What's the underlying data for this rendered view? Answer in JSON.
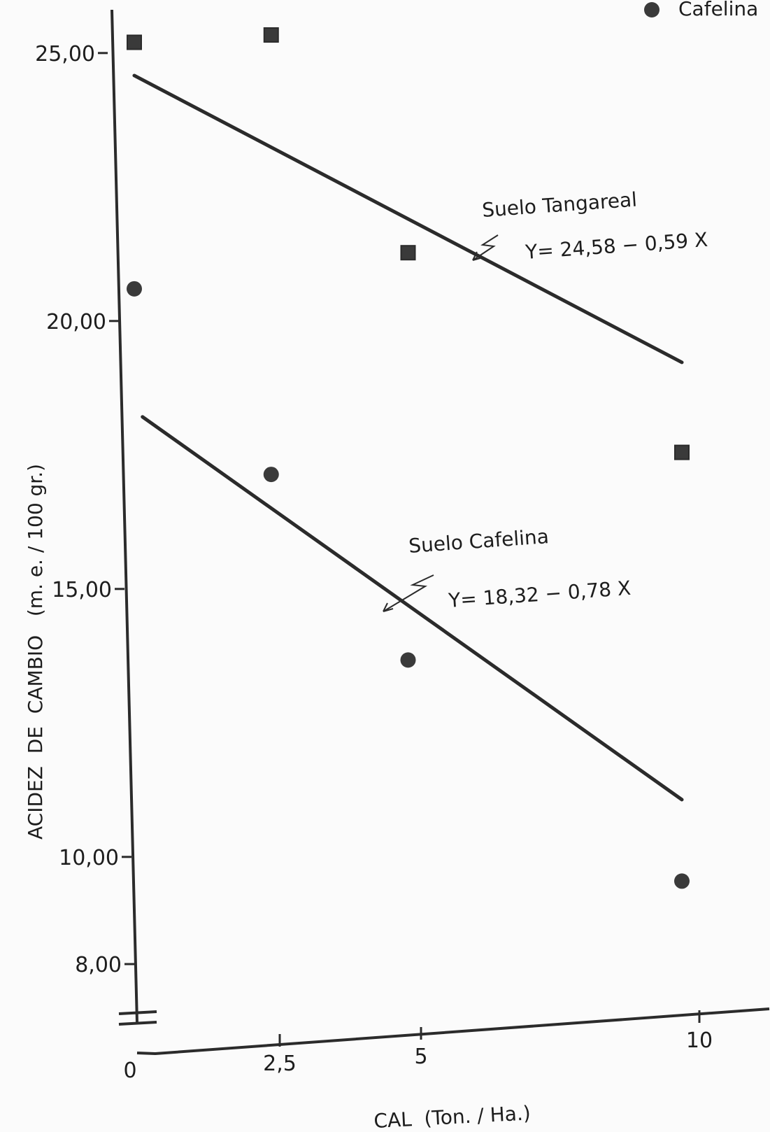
{
  "chart_data": {
    "type": "scatter",
    "x_ticks": [
      "0",
      "2,5",
      "5",
      "10"
    ],
    "y_ticks": [
      "25,00",
      "20,00",
      "15,00",
      "10,00",
      "8,00"
    ],
    "xlim": [
      0,
      10
    ],
    "ylim": [
      8,
      25
    ],
    "axis_break": "y",
    "xlabel": "CAL  (Ton. / Ha.)",
    "ylabel": "ACIDEZ  DE  CAMBIO   (m. e. / 100 gr.)",
    "legend": {
      "label": "Cafelina",
      "marker": "circle",
      "position": "top-right"
    },
    "series": [
      {
        "name": "Suelo Tangareal",
        "marker": "square",
        "points": [
          {
            "x": 0,
            "y": 25.2
          },
          {
            "x": 2.5,
            "y": 25.2
          },
          {
            "x": 5,
            "y": 21.0
          },
          {
            "x": 10,
            "y": 17.0
          }
        ],
        "equation": "Y= 24,58 − 0,59 X",
        "fit": {
          "intercept": 24.58,
          "slope": -0.59
        }
      },
      {
        "name": "Suelo Cafelina",
        "marker": "circle",
        "points": [
          {
            "x": 0,
            "y": 20.6
          },
          {
            "x": 2.5,
            "y": 17.0
          },
          {
            "x": 5,
            "y": 13.4
          },
          {
            "x": 10,
            "y": 9.0
          }
        ],
        "equation": "Y= 18,32  − 0,78 X",
        "fit": {
          "intercept": 18.32,
          "slope": -0.78
        }
      }
    ],
    "colors": {
      "ink": "#2b2b2b",
      "marker": "#3a3a3a"
    }
  }
}
